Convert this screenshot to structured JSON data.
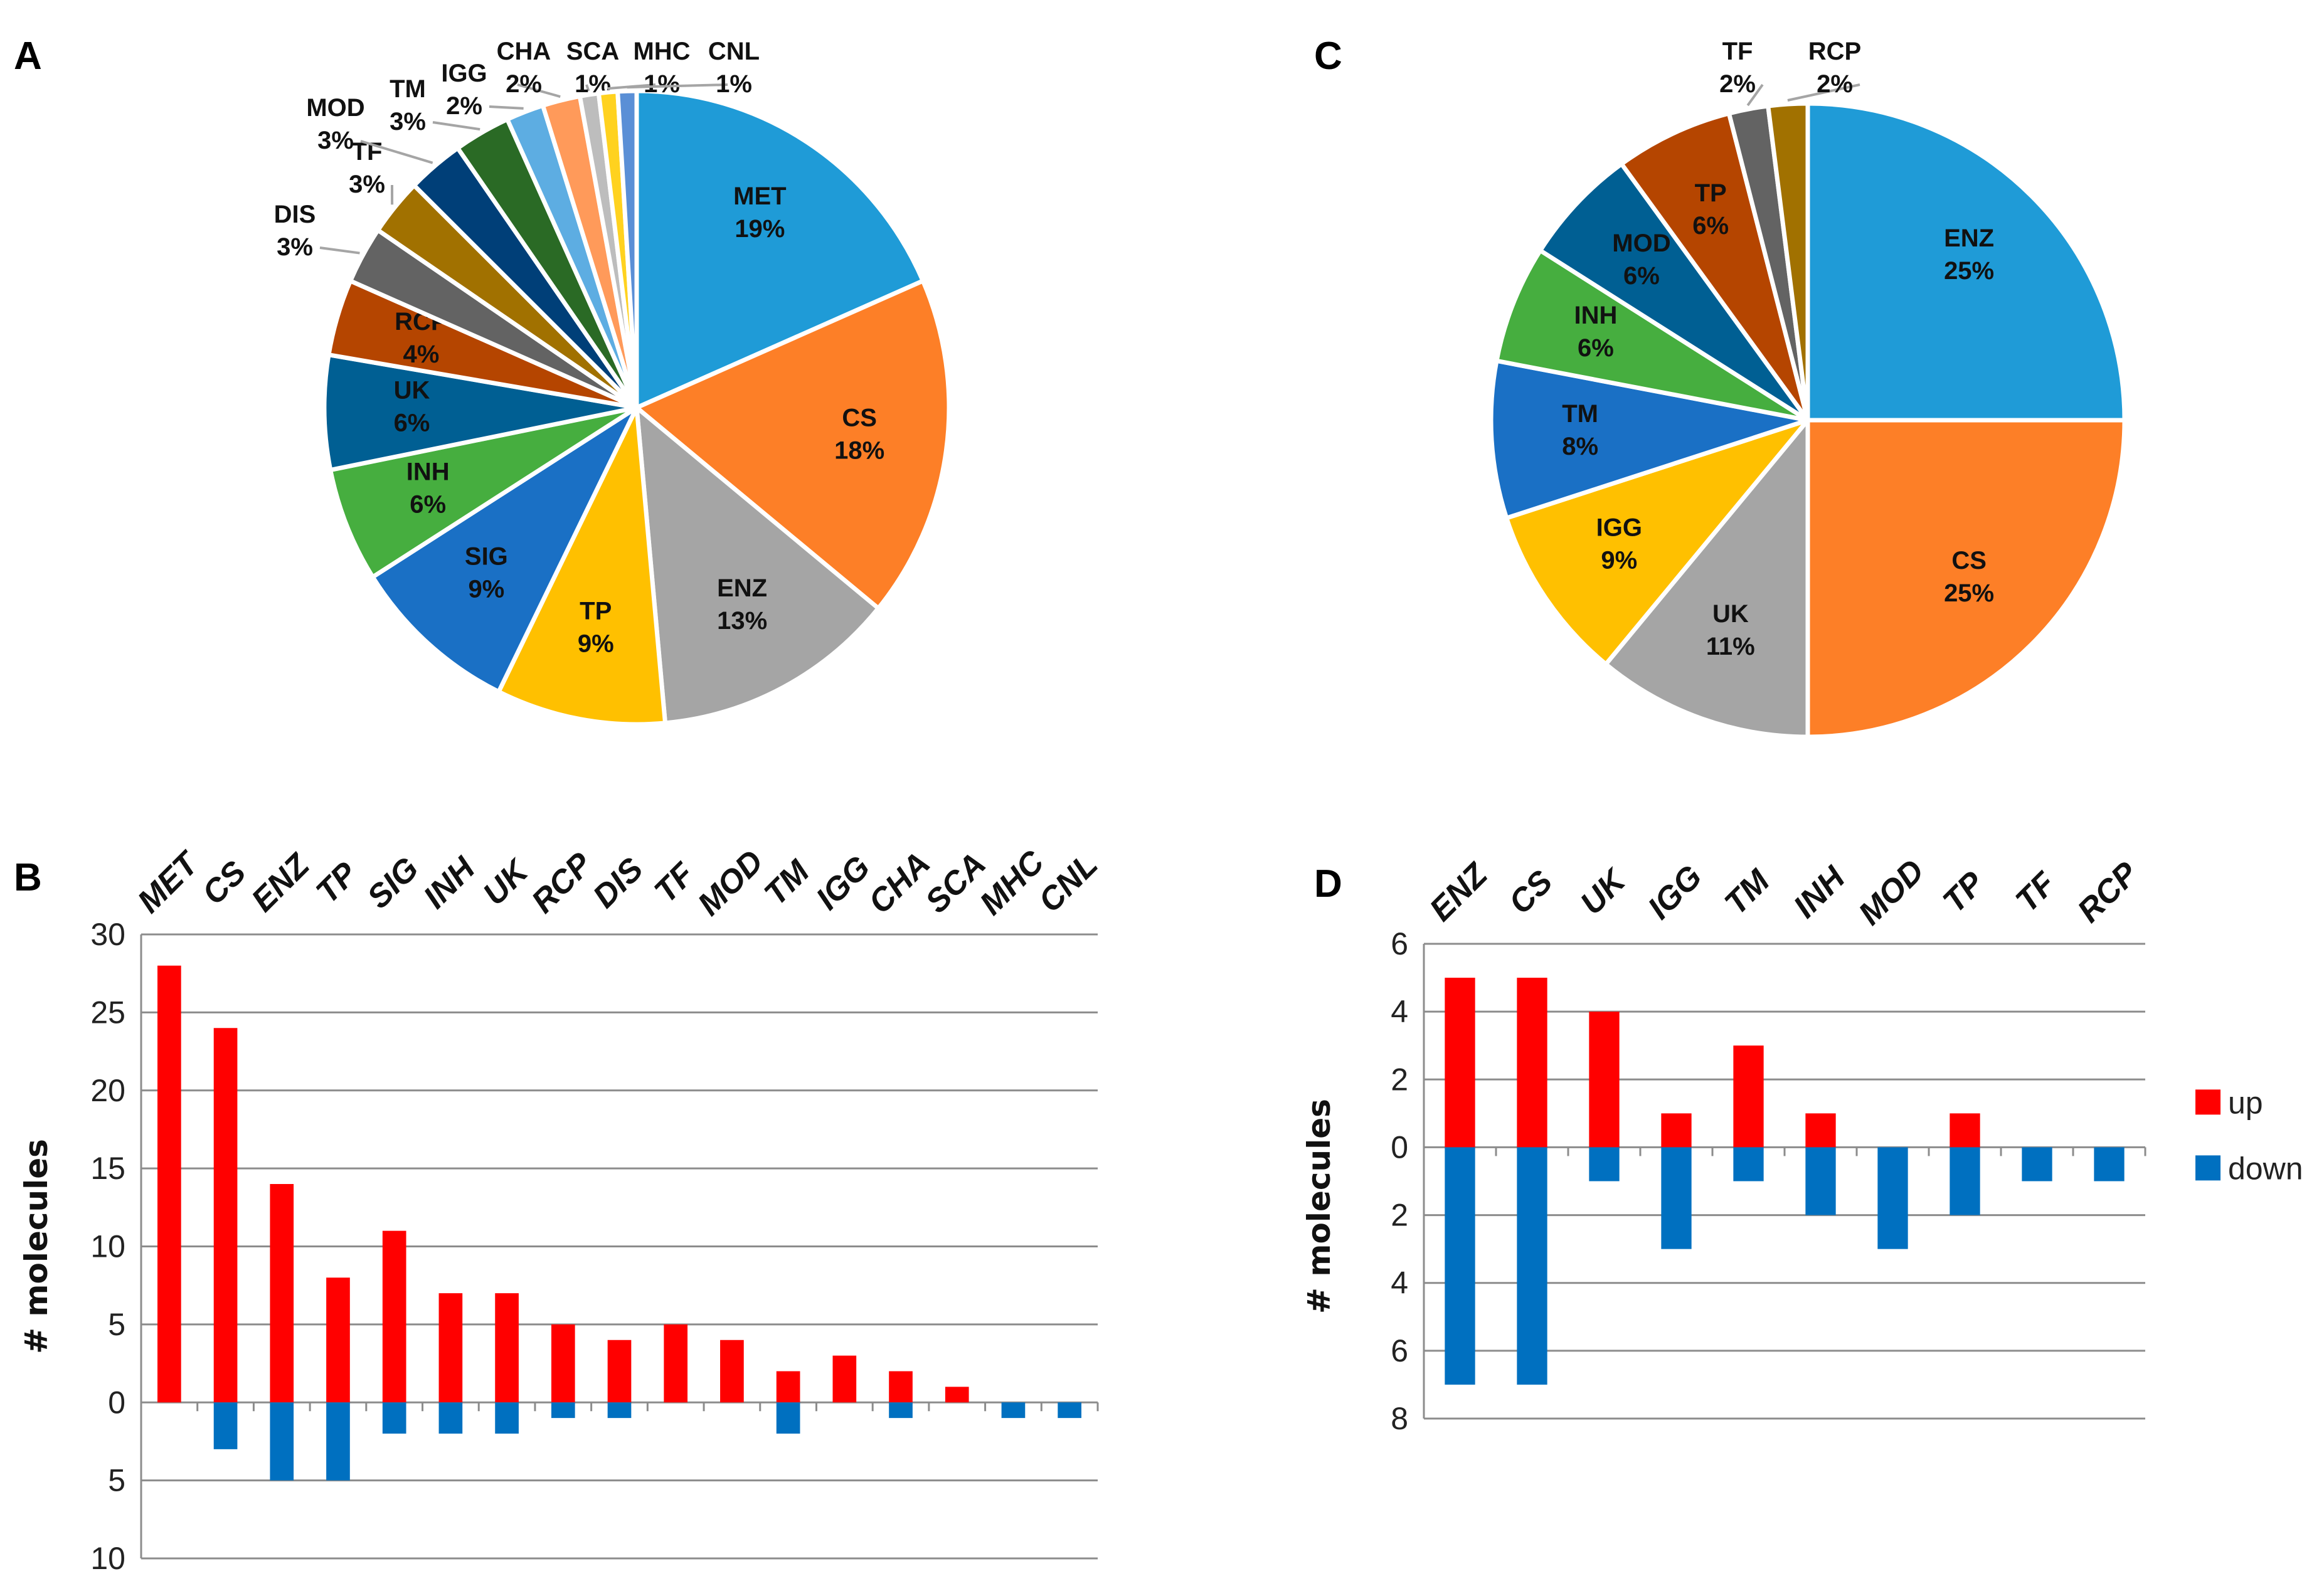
{
  "chart_data": [
    {
      "panel": "A",
      "type": "pie",
      "slices": [
        {
          "label": "MET",
          "value": 19,
          "pct_label": "19%",
          "color": "#1f9bd7"
        },
        {
          "label": "CS",
          "value": 18,
          "pct_label": "18%",
          "color": "#fd7f27"
        },
        {
          "label": "ENZ",
          "value": 13,
          "pct_label": "13%",
          "color": "#a5a5a5"
        },
        {
          "label": "TP",
          "value": 9,
          "pct_label": "9%",
          "color": "#ffc000"
        },
        {
          "label": "SIG",
          "value": 9,
          "pct_label": "9%",
          "color": "#1a70c5"
        },
        {
          "label": "INH",
          "value": 6,
          "pct_label": "6%",
          "color": "#46ae3f"
        },
        {
          "label": "UK",
          "value": 6,
          "pct_label": "6%",
          "color": "#005f93"
        },
        {
          "label": "RCP",
          "value": 4,
          "pct_label": "4%",
          "color": "#b54500"
        },
        {
          "label": "DIS",
          "value": 3,
          "pct_label": "3%",
          "color": "#636363"
        },
        {
          "label": "TF",
          "value": 3,
          "pct_label": "3%",
          "color": "#a17100"
        },
        {
          "label": "MOD",
          "value": 3,
          "pct_label": "3%",
          "color": "#003f78"
        },
        {
          "label": "TM",
          "value": 3,
          "pct_label": "3%",
          "color": "#2a6a25"
        },
        {
          "label": "IGG",
          "value": 2,
          "pct_label": "2%",
          "color": "#5dade2"
        },
        {
          "label": "CHA",
          "value": 2,
          "pct_label": "2%",
          "color": "#ff9a5a"
        },
        {
          "label": "SCA",
          "value": 1,
          "pct_label": "1%",
          "color": "#bdbdbd"
        },
        {
          "label": "MHC",
          "value": 1,
          "pct_label": "1%",
          "color": "#ffd21f"
        },
        {
          "label": "CNL",
          "value": 1,
          "pct_label": "1%",
          "color": "#5a8fd6"
        }
      ]
    },
    {
      "panel": "B",
      "type": "bar",
      "categories": [
        "MET",
        "CS",
        "ENZ",
        "TP",
        "SIG",
        "INH",
        "UK",
        "RCP",
        "DIS",
        "TF",
        "MOD",
        "TM",
        "IGG",
        "CHA",
        "SCA",
        "MHC",
        "CNL"
      ],
      "series": [
        {
          "name": "up",
          "color": "#ff0000",
          "values": [
            28,
            24,
            14,
            8,
            11,
            7,
            7,
            5,
            4,
            5,
            4,
            2,
            3,
            2,
            1,
            0,
            0
          ]
        },
        {
          "name": "down",
          "color": "#0070c0",
          "values": [
            0,
            3,
            5,
            5,
            2,
            2,
            2,
            1,
            1,
            0,
            0,
            2,
            0,
            1,
            0,
            1,
            1
          ]
        }
      ],
      "ylabel": "# molecules",
      "ylim": [
        -10,
        30
      ],
      "yticks": [
        30,
        25,
        20,
        15,
        10,
        5,
        0,
        5,
        10
      ],
      "grid": true
    },
    {
      "panel": "C",
      "type": "pie",
      "slices": [
        {
          "label": "ENZ",
          "value": 25,
          "pct_label": "25%",
          "color": "#1f9bd7"
        },
        {
          "label": "CS",
          "value": 25,
          "pct_label": "25%",
          "color": "#fd7f27"
        },
        {
          "label": "UK",
          "value": 11,
          "pct_label": "11%",
          "color": "#a5a5a5"
        },
        {
          "label": "IGG",
          "value": 9,
          "pct_label": "9%",
          "color": "#ffc000"
        },
        {
          "label": "TM",
          "value": 8,
          "pct_label": "8%",
          "color": "#1a70c5"
        },
        {
          "label": "INH",
          "value": 6,
          "pct_label": "6%",
          "color": "#46ae3f"
        },
        {
          "label": "MOD",
          "value": 6,
          "pct_label": "6%",
          "color": "#005f93"
        },
        {
          "label": "TP",
          "value": 6,
          "pct_label": "6%",
          "color": "#b54500"
        },
        {
          "label": "TF",
          "value": 2,
          "pct_label": "2%",
          "color": "#636363"
        },
        {
          "label": "RCP",
          "value": 2,
          "pct_label": "2%",
          "color": "#a17100"
        }
      ]
    },
    {
      "panel": "D",
      "type": "bar",
      "categories": [
        "ENZ",
        "CS",
        "UK",
        "IGG",
        "TM",
        "INH",
        "MOD",
        "TP",
        "TF",
        "RCP"
      ],
      "series": [
        {
          "name": "up",
          "color": "#ff0000",
          "values": [
            5,
            5,
            4,
            1,
            3,
            1,
            0,
            1,
            0,
            0
          ]
        },
        {
          "name": "down",
          "color": "#0070c0",
          "values": [
            7,
            7,
            1,
            3,
            1,
            2,
            3,
            2,
            1,
            1
          ]
        }
      ],
      "ylabel": "# molecules",
      "ylim": [
        -8,
        6
      ],
      "yticks": [
        6,
        4,
        2,
        0,
        2,
        4,
        6,
        8
      ],
      "legend": [
        "up",
        "down"
      ],
      "legend_position": "right",
      "grid": true
    }
  ]
}
